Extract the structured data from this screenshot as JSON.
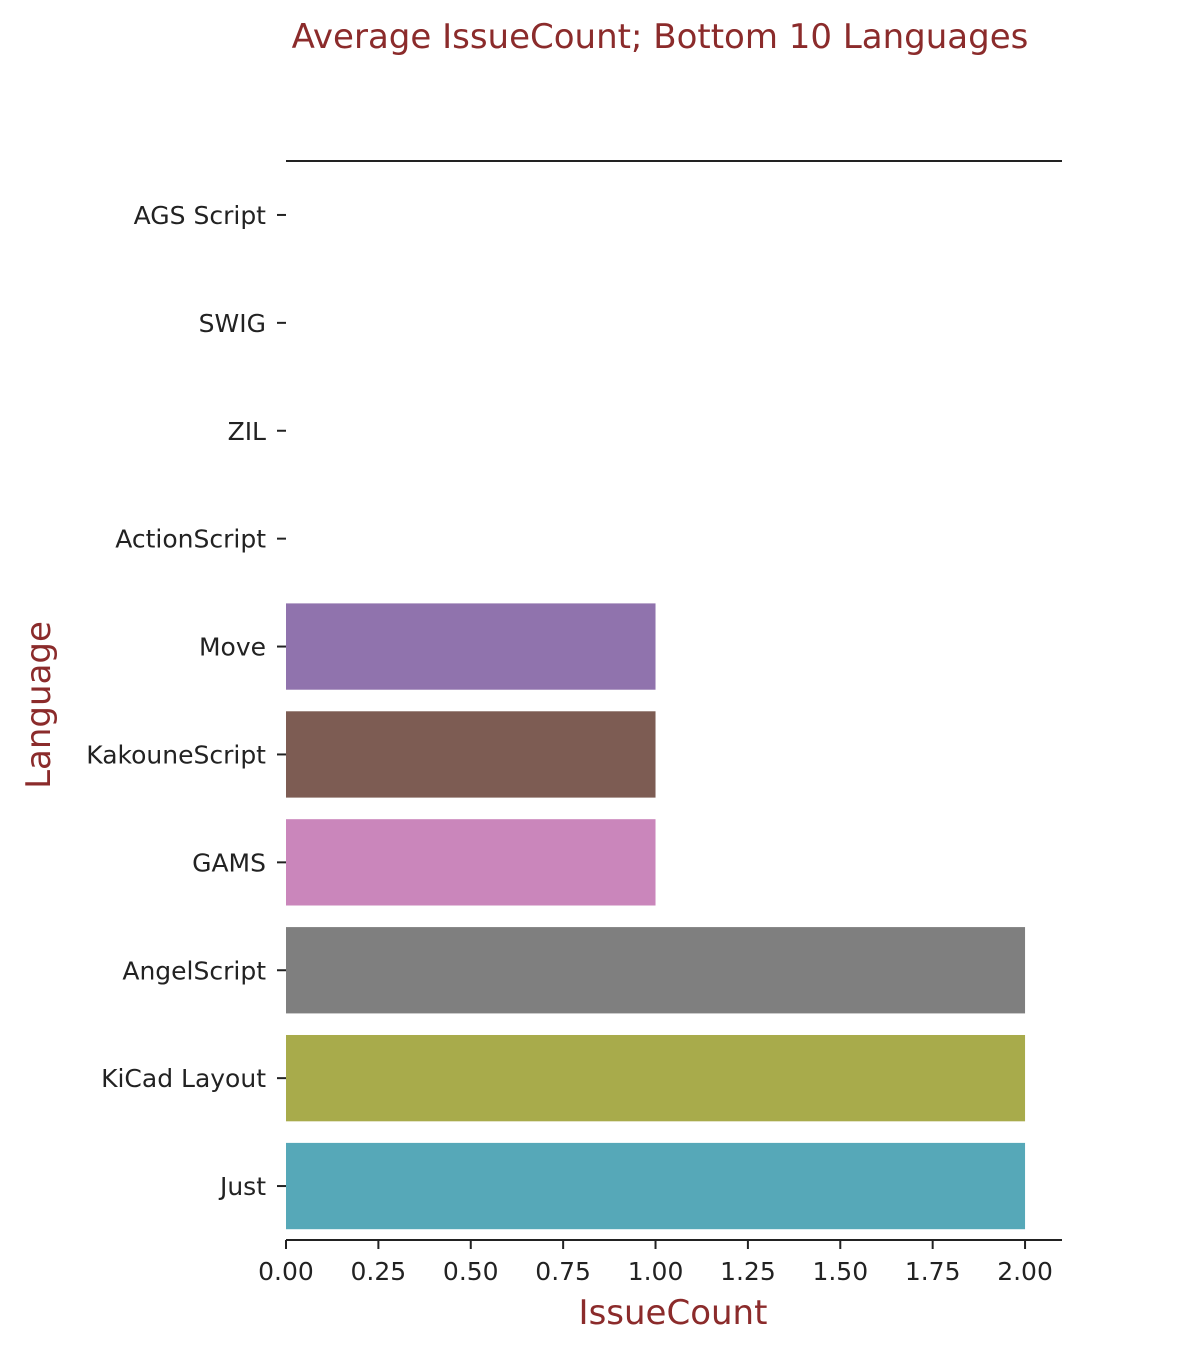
{
  "chart_data": {
    "type": "bar",
    "orientation": "horizontal",
    "title": "Average IssueCount; Bottom 10 Languages",
    "xlabel": "IssueCount",
    "ylabel": "Language",
    "xlim": [
      0,
      2.1
    ],
    "x_ticks": [
      "0.00",
      "0.25",
      "0.50",
      "0.75",
      "1.00",
      "1.25",
      "1.50",
      "1.75",
      "2.00"
    ],
    "grid": false,
    "categories": [
      "AGS Script",
      "SWIG",
      "ZIL",
      "ActionScript",
      "Move",
      "KakouneScript",
      "GAMS",
      "AngelScript",
      "KiCad Layout",
      "Just"
    ],
    "values": [
      0,
      0,
      0,
      0,
      1,
      1,
      1,
      2,
      2,
      2
    ],
    "colors": [
      "#1f77b4",
      "#ff7f0e",
      "#2ca02c",
      "#d62728",
      "#9073ad",
      "#7d5c53",
      "#ca86bb",
      "#7f7f7f",
      "#a8ab4b",
      "#56a8b8"
    ]
  }
}
